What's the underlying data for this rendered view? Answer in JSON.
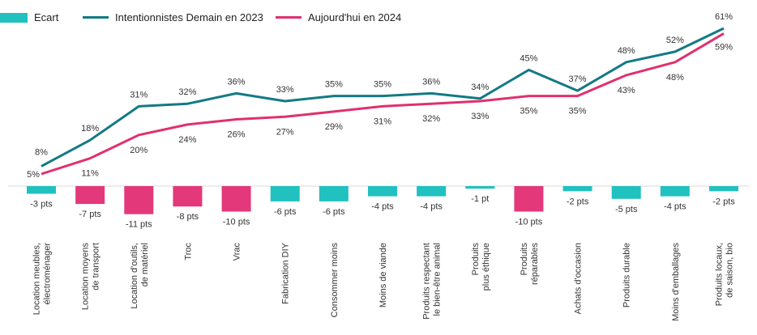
{
  "chart_data": {
    "type": "line",
    "categories": [
      "Location meubles, électroménager",
      "Location moyens de transport",
      "Location d'outils, de matériel",
      "Troc",
      "Vrac",
      "Fabrication DIY",
      "Consommer moins",
      "Moins de viande",
      "Produits respectant le bien-être animal",
      "Produits plus éthique",
      "Produits réparables",
      "Achats d'occasion",
      "Produits durable",
      "Moins d'emballages",
      "Produits locaux, de saison, bio"
    ],
    "series": [
      {
        "name": "Intentionnistes Demain en 2023",
        "type": "line",
        "color": "#137a84",
        "values": [
          8,
          18,
          31,
          32,
          36,
          33,
          35,
          35,
          36,
          34,
          45,
          37,
          48,
          52,
          61
        ],
        "labels": [
          "8%",
          "18%",
          "31%",
          "32%",
          "36%",
          "33%",
          "35%",
          "35%",
          "36%",
          "34%",
          "45%",
          "37%",
          "48%",
          "52%",
          "61%"
        ]
      },
      {
        "name": "Aujourd'hui en 2024",
        "type": "line",
        "color": "#e0306f",
        "values": [
          5,
          11,
          20,
          24,
          26,
          27,
          29,
          31,
          32,
          33,
          35,
          35,
          43,
          48,
          59
        ],
        "labels": [
          "5%",
          "11%",
          "20%",
          "24%",
          "26%",
          "27%",
          "29%",
          "31%",
          "32%",
          "33%",
          "35%",
          "35%",
          "43%",
          "48%",
          "59%"
        ]
      },
      {
        "name": "Ecart",
        "type": "bar",
        "values": [
          -3,
          -7,
          -11,
          -8,
          -10,
          -6,
          -6,
          -4,
          -4,
          -1,
          -10,
          -2,
          -5,
          -4,
          -2
        ],
        "labels": [
          "-3 pts",
          "-7 pts",
          "-11 pts",
          "-8 pts",
          "-10 pts",
          "-6 pts",
          "-6 pts",
          "-4 pts",
          "-4 pts",
          "-1 pt",
          "-10 pts",
          "-2 pts",
          "-5 pts",
          "-4 pts",
          "-2 pts"
        ],
        "bar_colors": [
          "#21c1c0",
          "#e3387a",
          "#e3387a",
          "#e3387a",
          "#e3387a",
          "#21c1c0",
          "#21c1c0",
          "#21c1c0",
          "#21c1c0",
          "#21c1c0",
          "#e3387a",
          "#21c1c0",
          "#21c1c0",
          "#21c1c0",
          "#21c1c0"
        ]
      }
    ],
    "legend": {
      "position": "top-left",
      "items": [
        {
          "label": "Ecart",
          "kind": "bar",
          "color": "#21c1c0"
        },
        {
          "label": "Intentionnistes Demain en 2023",
          "kind": "line",
          "color": "#137a84"
        },
        {
          "label": "Aujourd'hui en 2024",
          "kind": "line",
          "color": "#e0306f"
        }
      ]
    },
    "grid": false,
    "title": "",
    "xlabel": "",
    "ylabel": ""
  }
}
